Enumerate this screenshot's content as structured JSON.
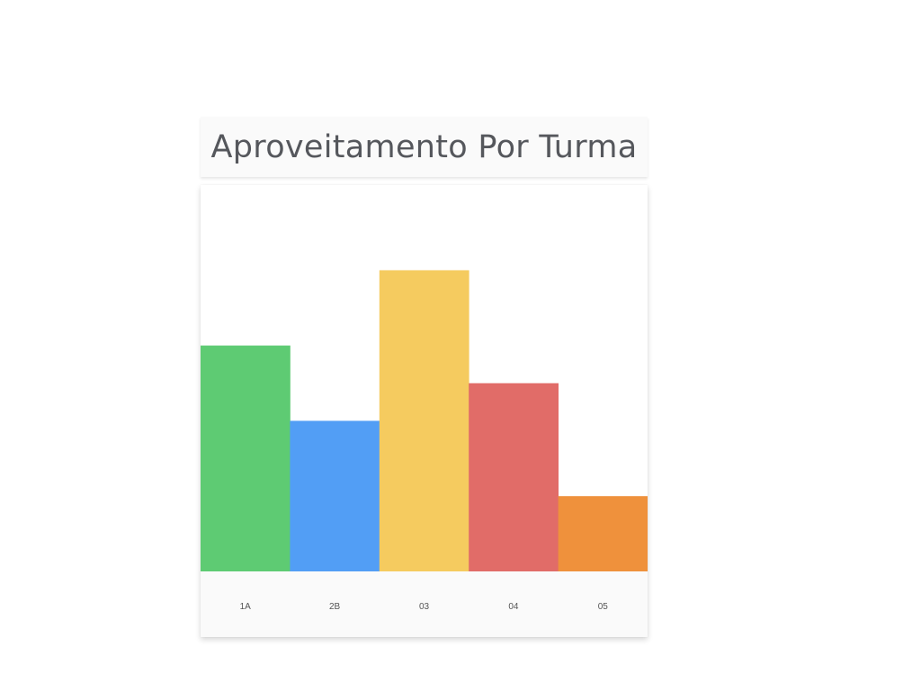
{
  "header": {
    "title": "Aproveitamento Por Turma"
  },
  "chart_data": {
    "type": "bar",
    "title": "Aproveitamento Por Turma",
    "xlabel": "",
    "ylabel": "",
    "categories": [
      "1A",
      "2B",
      "03",
      "04",
      "05"
    ],
    "values": [
      60,
      40,
      80,
      50,
      20
    ],
    "ylim": [
      0,
      100
    ],
    "grid": false,
    "legend": "none",
    "colors": [
      "#5ecb73",
      "#529ef5",
      "#f5cb5f",
      "#e16c68",
      "#ef913c"
    ]
  }
}
